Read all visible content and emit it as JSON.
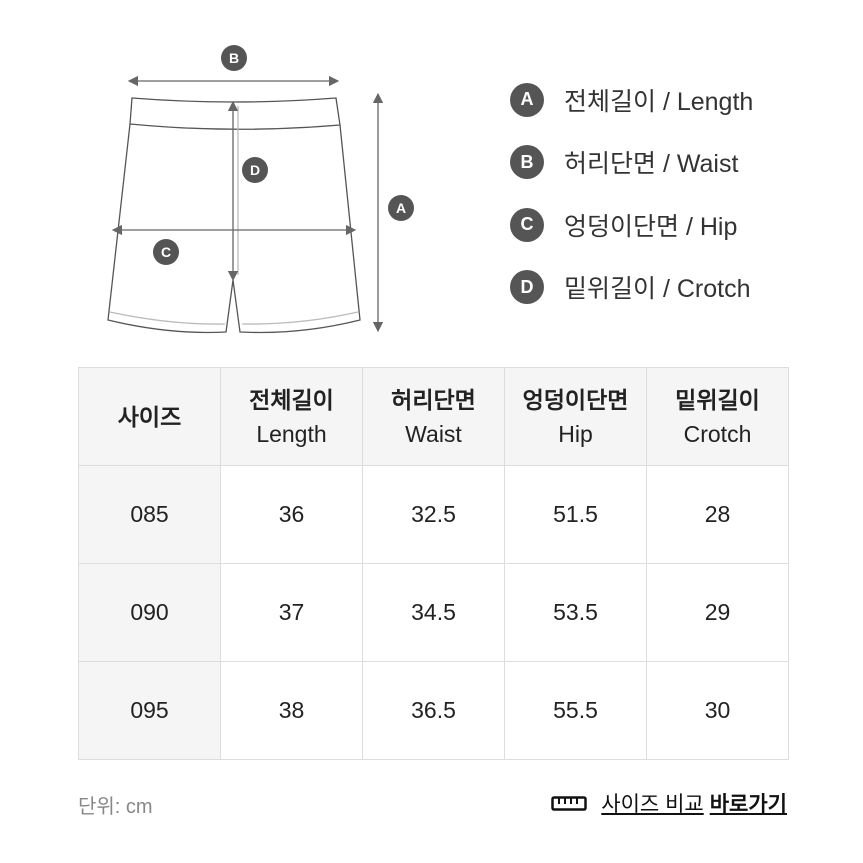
{
  "legend": [
    {
      "letter": "A",
      "label": "전체길이 / Length"
    },
    {
      "letter": "B",
      "label": "허리단면 / Waist"
    },
    {
      "letter": "C",
      "label": "엉덩이단면 / Hip"
    },
    {
      "letter": "D",
      "label": "밑위길이 / Crotch"
    }
  ],
  "table": {
    "headers": [
      {
        "ko": "사이즈",
        "en": ""
      },
      {
        "ko": "전체길이",
        "en": "Length"
      },
      {
        "ko": "허리단면",
        "en": "Waist"
      },
      {
        "ko": "엉덩이단면",
        "en": "Hip"
      },
      {
        "ko": "밑위길이",
        "en": "Crotch"
      }
    ],
    "rows": [
      [
        "085",
        "36",
        "32.5",
        "51.5",
        "28"
      ],
      [
        "090",
        "37",
        "34.5",
        "53.5",
        "29"
      ],
      [
        "095",
        "38",
        "36.5",
        "55.5",
        "30"
      ]
    ]
  },
  "unit": "단위: cm",
  "compare": {
    "text": "사이즈 비교",
    "bold": "바로가기",
    "icon": "ruler-icon"
  }
}
